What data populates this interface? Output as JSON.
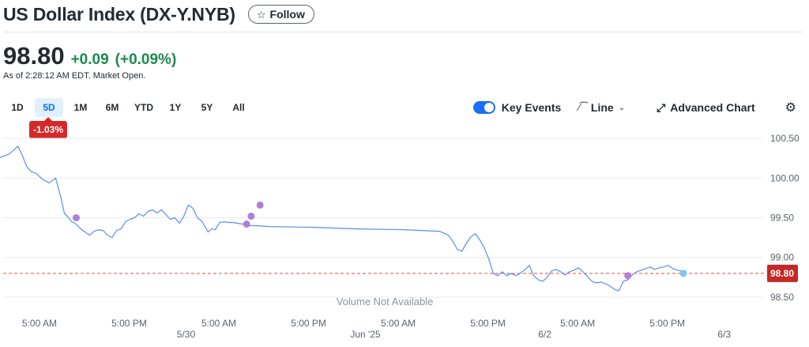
{
  "header": {
    "title": "US Dollar Index (DX-Y.NYB)",
    "follow_label": "Follow",
    "follow_icon": "star-outline-icon"
  },
  "quote": {
    "price": "98.80",
    "change": "+0.09",
    "change_pct": "(+0.09%)",
    "as_of": "As of 2:28:12 AM EDT. Market Open.",
    "positive_color": "#1a8a4c"
  },
  "range_tabs": [
    {
      "label": "1D",
      "active": false
    },
    {
      "label": "5D",
      "active": true
    },
    {
      "label": "1M",
      "active": false
    },
    {
      "label": "6M",
      "active": false
    },
    {
      "label": "YTD",
      "active": false
    },
    {
      "label": "1Y",
      "active": false
    },
    {
      "label": "5Y",
      "active": false
    },
    {
      "label": "All",
      "active": false
    }
  ],
  "period_performance": "-1.03%",
  "controls": {
    "key_events_label": "Key Events",
    "key_events_on": true,
    "chart_type_label": "Line",
    "chart_type_icon": "line-chart-icon",
    "advanced_chart_label": "Advanced Chart",
    "advanced_chart_icon": "expand-icon",
    "settings_icon": "gear-icon"
  },
  "chart_data": {
    "type": "line",
    "series": [
      {
        "color": "#5b8def",
        "x": [
          0.0,
          0.1,
          0.2,
          0.25,
          0.3,
          0.35,
          0.4,
          0.48,
          0.55,
          0.62,
          0.68,
          0.72,
          0.75,
          0.8,
          0.85,
          0.9,
          0.95,
          1.0,
          1.05,
          1.1,
          1.15,
          1.2,
          1.25,
          1.3,
          1.35,
          1.4,
          1.45,
          1.5,
          1.55,
          1.6,
          1.65,
          1.7,
          1.75,
          1.8,
          1.85,
          1.9,
          1.95,
          2.0,
          2.05,
          2.1,
          2.15,
          2.2,
          2.25,
          2.28,
          2.32,
          2.36,
          2.4,
          2.45,
          2.5,
          2.55,
          2.6,
          2.65,
          2.7,
          2.75,
          2.8,
          2.85,
          3.0,
          3.5,
          4.0,
          4.5,
          4.9,
          5.0,
          5.05,
          5.1,
          5.15,
          5.2,
          5.25,
          5.3,
          5.35,
          5.4,
          5.45,
          5.5,
          5.55,
          5.6,
          5.65,
          5.7,
          5.75,
          5.8,
          5.85,
          5.9,
          5.95,
          6.0,
          6.05,
          6.1,
          6.15,
          6.2,
          6.25,
          6.3,
          6.35,
          6.4,
          6.45,
          6.5,
          6.55,
          6.6,
          6.65,
          6.7,
          6.75,
          6.8,
          6.85,
          6.9,
          6.95,
          7.0,
          7.05,
          7.1,
          7.15,
          7.2,
          7.25,
          7.3,
          7.35,
          7.4,
          7.45,
          7.5,
          7.55,
          7.6,
          7.62
        ],
        "values": [
          100.26,
          100.3,
          100.4,
          100.28,
          100.14,
          100.08,
          100.06,
          99.98,
          99.94,
          100.0,
          99.75,
          99.55,
          99.52,
          99.45,
          99.42,
          99.36,
          99.32,
          99.28,
          99.33,
          99.35,
          99.34,
          99.28,
          99.25,
          99.34,
          99.36,
          99.45,
          99.48,
          99.5,
          99.55,
          99.52,
          99.58,
          99.6,
          99.56,
          99.6,
          99.54,
          99.48,
          99.5,
          99.43,
          99.52,
          99.66,
          99.62,
          99.5,
          99.46,
          99.4,
          99.32,
          99.36,
          99.35,
          99.44,
          99.45,
          99.44,
          99.44,
          99.43,
          99.42,
          99.41,
          99.4,
          99.4,
          99.39,
          99.38,
          99.36,
          99.35,
          99.33,
          99.28,
          99.2,
          99.1,
          99.08,
          99.18,
          99.26,
          99.3,
          99.22,
          99.12,
          98.98,
          98.8,
          98.77,
          98.82,
          98.77,
          98.8,
          98.77,
          98.8,
          98.84,
          98.9,
          98.77,
          98.72,
          98.7,
          98.75,
          98.83,
          98.85,
          98.82,
          98.78,
          98.82,
          98.84,
          98.87,
          98.82,
          98.76,
          98.7,
          98.68,
          98.69,
          98.67,
          98.64,
          98.6,
          98.58,
          98.7,
          98.72,
          98.78,
          98.82,
          98.84,
          98.86,
          98.88,
          98.85,
          98.87,
          98.88,
          98.9,
          98.86,
          98.84,
          98.83,
          98.8
        ]
      }
    ],
    "yticks": [
      "100.50",
      "100.00",
      "99.50",
      "99.00",
      "98.50"
    ],
    "ytick_values": [
      100.5,
      100.0,
      99.5,
      99.0,
      98.5
    ],
    "ylim": [
      98.4,
      100.6
    ],
    "xlim": [
      0.0,
      8.5
    ],
    "xticks": [
      {
        "x": 0.44,
        "label": "5:00 AM",
        "sub": ""
      },
      {
        "x": 1.44,
        "label": "5:00 PM",
        "sub": "5/30"
      },
      {
        "x": 2.44,
        "label": "5:00 AM",
        "sub": ""
      },
      {
        "x": 3.44,
        "label": "5:00 PM",
        "sub": "Jun '25"
      },
      {
        "x": 4.44,
        "label": "5:00 AM",
        "sub": ""
      },
      {
        "x": 5.44,
        "label": "5:00 PM",
        "sub": "6/2"
      },
      {
        "x": 6.44,
        "label": "5:00 AM",
        "sub": ""
      },
      {
        "x": 7.44,
        "label": "5:00 PM",
        "sub": "6/3"
      }
    ],
    "reference_line": {
      "value": 98.8,
      "color": "#e0533d",
      "label": "98.80"
    },
    "events": [
      {
        "x": 0.85,
        "y": 99.5
      },
      {
        "x": 2.75,
        "y": 99.42
      },
      {
        "x": 2.8,
        "y": 99.52
      },
      {
        "x": 2.9,
        "y": 99.66
      },
      {
        "x": 7.0,
        "y": 98.77
      }
    ],
    "event_color": "#b07fd8",
    "last_point_color": "#7cc6f2",
    "annotation": "Volume Not Available",
    "grid": true
  }
}
